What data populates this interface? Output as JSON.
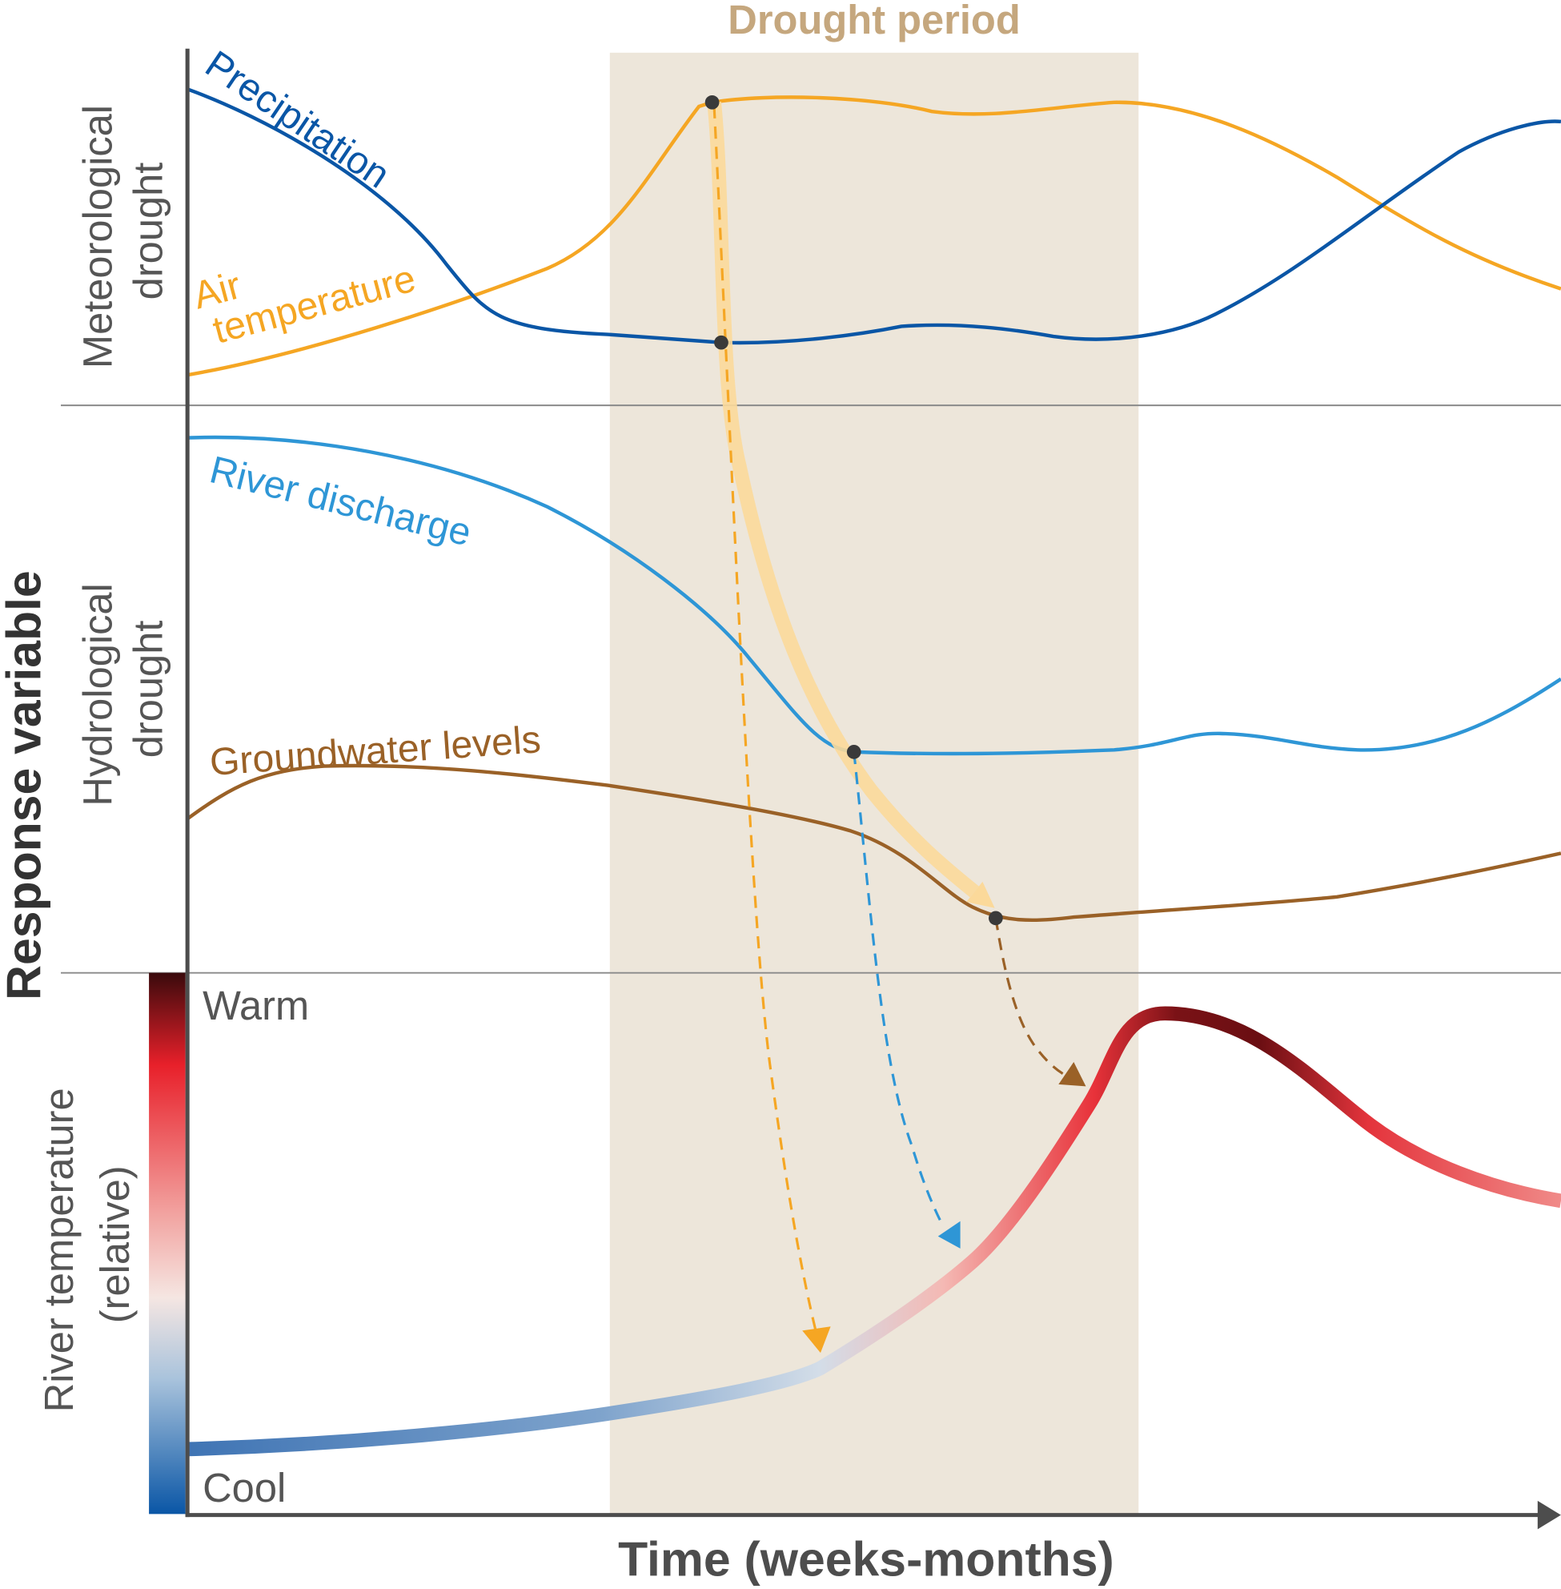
{
  "title": "Drought period",
  "axes": {
    "x_label": "Time (weeks-months)",
    "y_label": "Response variable"
  },
  "panels": [
    {
      "label_line1": "Meteorological",
      "label_line2": "drought"
    },
    {
      "label_line1": "Hydrological",
      "label_line2": "drought"
    },
    {
      "label_line1": "River temperature",
      "label_line2": "(relative)"
    }
  ],
  "series": {
    "precipitation": {
      "label": "Precipitation",
      "color": "#0a56a6"
    },
    "air_temperature": {
      "label_line1": "Air",
      "label_line2": "temperature",
      "color": "#f5a623"
    },
    "river_discharge": {
      "label": "River discharge",
      "color": "#2e96d6"
    },
    "groundwater": {
      "label": "Groundwater levels",
      "color": "#9a6127"
    }
  },
  "colorbar": {
    "top_label": "Warm",
    "bottom_label": "Cool"
  },
  "colors": {
    "drought_band": "#ede6da",
    "title": "#c5a77e",
    "axis": "#4d4d4d"
  }
}
